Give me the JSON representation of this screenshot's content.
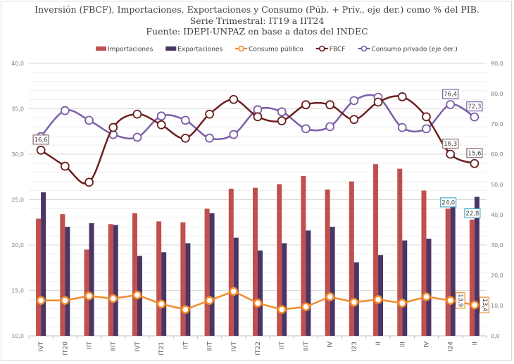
{
  "chart_data": {
    "type": "bar+line",
    "title": "Inversión (FBCF), Importaciones, Exportaciones y Consumo (Púb. + Priv., eje der.) como % del PIB.",
    "subtitle": "Serie Trimestral: IT19 a IIT24",
    "source": "Fuente: IDEPI-UNPAZ en base a datos del INDEC",
    "categories": [
      "IVT",
      "IT20",
      "IIT",
      "IIIT",
      "IVT",
      "IT21",
      "IIT",
      "IIIT",
      "IVT",
      "IT22",
      "IIT",
      "IIIT",
      "IV",
      "I23",
      "II",
      "III",
      "IV",
      "I24",
      "II"
    ],
    "left_axis": {
      "ylim": [
        10,
        40
      ],
      "ticks": [
        "10,0",
        "15,0",
        "20,0",
        "25,0",
        "30,0",
        "35,0",
        "40,0"
      ],
      "tick_values": [
        10,
        15,
        20,
        25,
        30,
        35,
        40
      ]
    },
    "right_axis": {
      "ylim": [
        0,
        90
      ],
      "ticks": [
        "0,0",
        "10,0",
        "20,0",
        "30,0",
        "40,0",
        "50,0",
        "60,0",
        "70,0",
        "80,0",
        "90,0"
      ],
      "tick_values": [
        0,
        10,
        20,
        30,
        40,
        50,
        60,
        70,
        80,
        90
      ]
    },
    "fbcf_hidden_axis": {
      "ylim": [
        2.7,
        23.1
      ]
    },
    "legend_position": "top",
    "series": [
      {
        "name": "Importaciones",
        "kind": "bar",
        "axis": "left",
        "color": "#c0504d",
        "values": [
          22.9,
          23.4,
          19.5,
          22.3,
          23.5,
          22.6,
          22.5,
          24.0,
          26.2,
          26.3,
          26.7,
          27.6,
          26.1,
          27.0,
          28.9,
          28.4,
          26.0,
          24.0,
          22.8
        ],
        "labels": [
          {
            "index": 17,
            "text": "24,0"
          },
          {
            "index": 18,
            "text": "22,8"
          }
        ]
      },
      {
        "name": "Exportaciones",
        "kind": "bar",
        "axis": "left",
        "color": "#4a3566",
        "values": [
          25.8,
          22.0,
          22.4,
          22.2,
          18.8,
          19.2,
          20.2,
          23.5,
          20.8,
          19.4,
          20.2,
          21.6,
          22.0,
          18.1,
          18.9,
          20.5,
          20.7,
          24.2,
          25.3
        ],
        "labels": []
      },
      {
        "name": "Consumo público",
        "kind": "line",
        "axis": "left",
        "color": "#f08c2e",
        "values": [
          13.9,
          13.9,
          14.4,
          14.1,
          14.5,
          13.5,
          12.9,
          13.9,
          14.9,
          13.6,
          12.9,
          13.2,
          14.3,
          13.7,
          14.0,
          13.6,
          14.3,
          13.9,
          13.4
        ],
        "labels": [
          {
            "index": 17,
            "text": "13,9"
          },
          {
            "index": 18,
            "text": "13,4"
          }
        ]
      },
      {
        "name": "FBCF",
        "kind": "line",
        "axis": "hidden",
        "color": "#6b1f1f",
        "values": [
          16.6,
          15.4,
          14.2,
          18.3,
          19.3,
          18.5,
          17.5,
          19.3,
          20.4,
          19.1,
          18.8,
          20.0,
          20.0,
          18.9,
          20.2,
          20.6,
          19.1,
          16.3,
          15.6
        ],
        "labels": [
          {
            "index": 0,
            "text": "16,6"
          },
          {
            "index": 17,
            "text": "16,3"
          },
          {
            "index": 18,
            "text": "15,6"
          }
        ]
      },
      {
        "name": "Consumo privado (eje der.)",
        "kind": "line",
        "axis": "right",
        "color": "#7b5ea7",
        "values": [
          65.8,
          74.4,
          71.2,
          66.5,
          65.6,
          72.6,
          71.2,
          65.3,
          66.5,
          74.7,
          74.0,
          68.4,
          69.1,
          77.7,
          78.8,
          68.8,
          68.4,
          76.4,
          72.3
        ],
        "labels": [
          {
            "index": 17,
            "text": "76,4"
          },
          {
            "index": 18,
            "text": "72,3"
          }
        ]
      }
    ]
  }
}
